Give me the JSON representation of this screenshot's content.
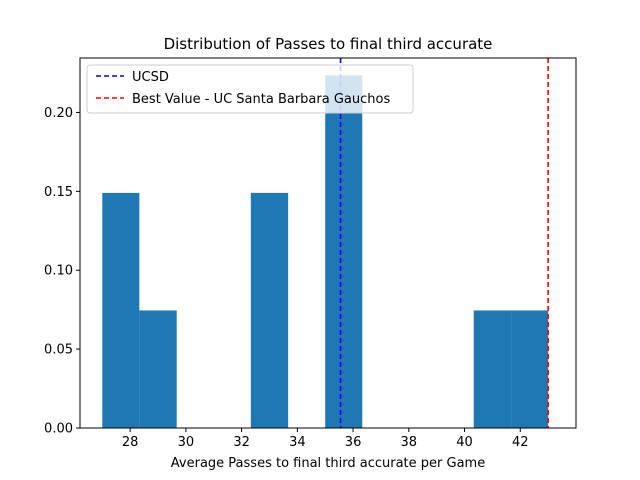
{
  "chart_data": {
    "type": "histogram",
    "title": "Distribution of Passes to final third accurate",
    "xlabel": "Average Passes to final third accurate per Game",
    "ylabel": "",
    "xlim": [
      26.2,
      44.0
    ],
    "ylim": [
      0,
      0.2345
    ],
    "xticks": [
      28,
      30,
      32,
      34,
      36,
      38,
      40,
      42
    ],
    "yticks": [
      0.0,
      0.05,
      0.1,
      0.15,
      0.2
    ],
    "ytick_labels": [
      "0.00",
      "0.05",
      "0.10",
      "0.15",
      "0.20"
    ],
    "bar_color": "#1f77b4",
    "bins": [
      {
        "x0": 27.0,
        "x1": 28.33,
        "value": 0.149
      },
      {
        "x0": 28.33,
        "x1": 29.67,
        "value": 0.0745
      },
      {
        "x0": 29.67,
        "x1": 31.0,
        "value": 0
      },
      {
        "x0": 31.0,
        "x1": 32.33,
        "value": 0
      },
      {
        "x0": 32.33,
        "x1": 33.67,
        "value": 0.149
      },
      {
        "x0": 33.67,
        "x1": 35.0,
        "value": 0
      },
      {
        "x0": 35.0,
        "x1": 36.33,
        "value": 0.2235
      },
      {
        "x0": 36.33,
        "x1": 37.67,
        "value": 0
      },
      {
        "x0": 37.67,
        "x1": 39.0,
        "value": 0
      },
      {
        "x0": 39.0,
        "x1": 40.33,
        "value": 0
      },
      {
        "x0": 40.33,
        "x1": 41.67,
        "value": 0.0745
      },
      {
        "x0": 41.67,
        "x1": 43.0,
        "value": 0.0745
      }
    ],
    "reference_lines": [
      {
        "name": "UCSD",
        "x": 35.55,
        "color": "#0000ff",
        "style": "dashed"
      },
      {
        "name": "Best Value - UC Santa Barbara Gauchos",
        "x": 43.0,
        "color": "#ff0000",
        "style": "dashed"
      }
    ],
    "legend_position": "upper-left",
    "grid": false
  }
}
